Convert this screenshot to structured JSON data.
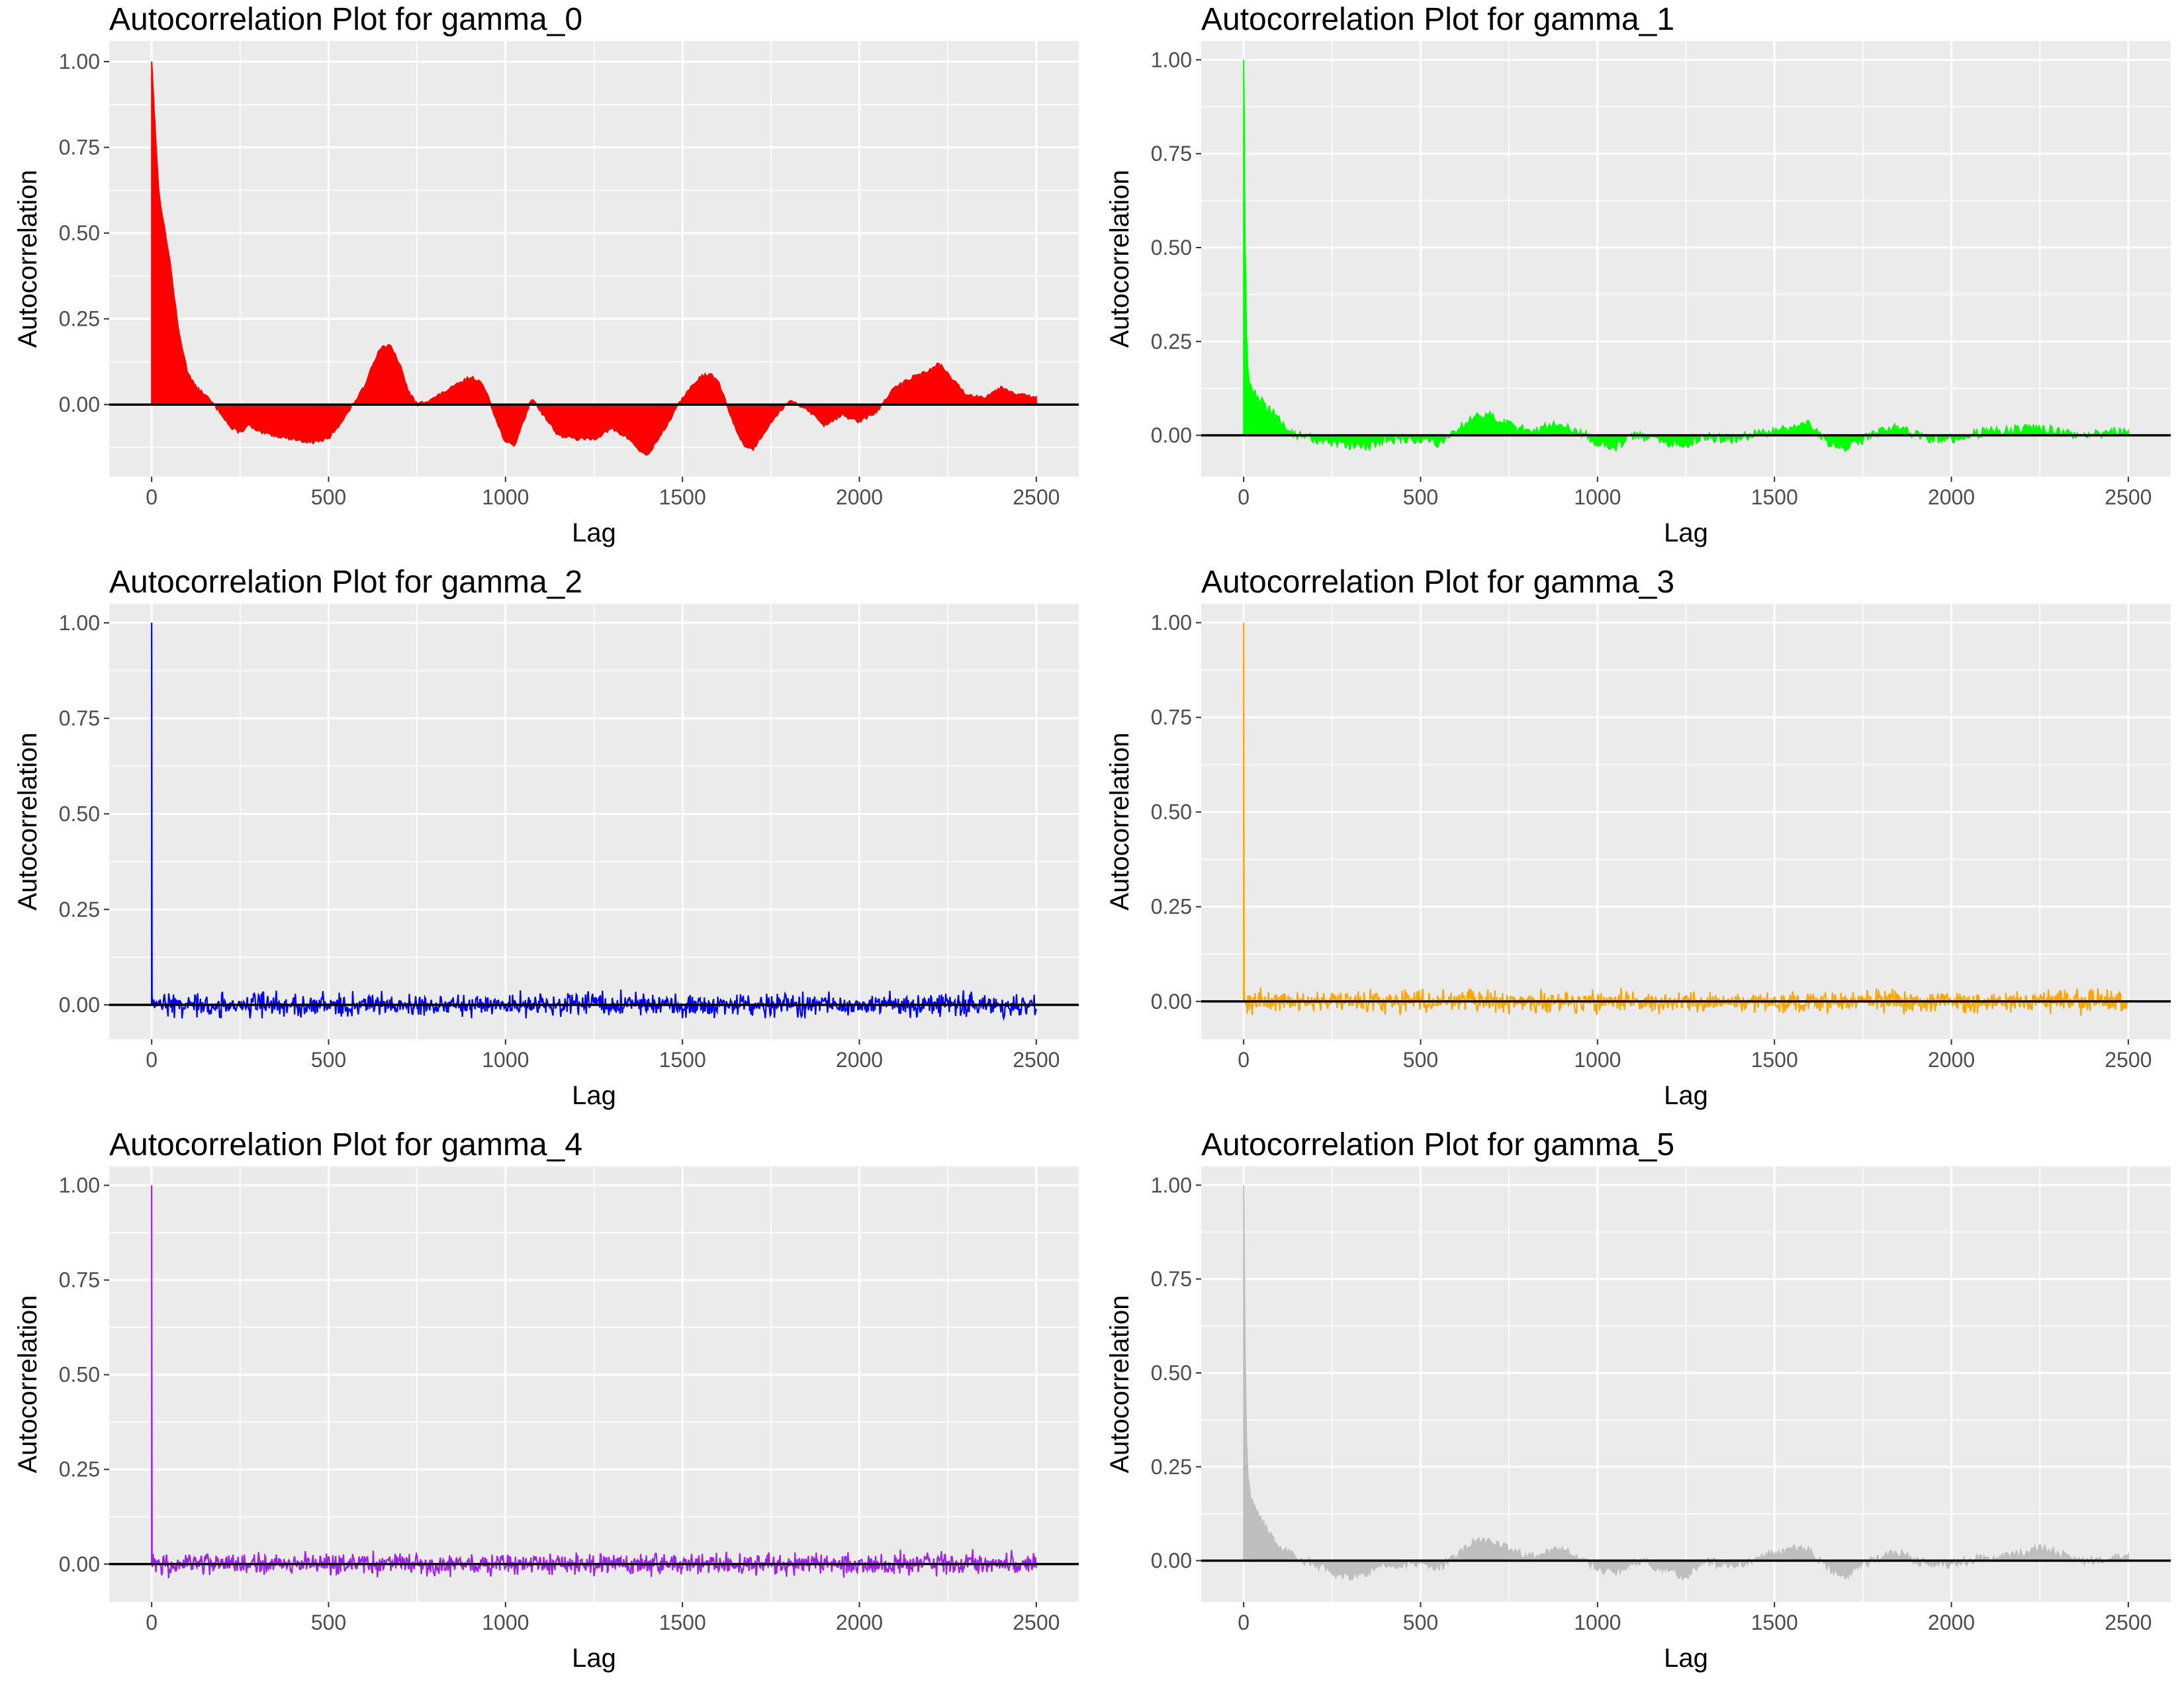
{
  "chart_data": [
    {
      "type": "area",
      "title": "Autocorrelation Plot for gamma_0",
      "xlabel": "Lag",
      "ylabel": "Autocorrelation",
      "color": "#ff0000",
      "style": "area",
      "xlim": [
        -120,
        2620
      ],
      "ylim": [
        -0.21,
        1.06
      ],
      "xticks": [
        0,
        500,
        1000,
        1500,
        2000,
        2500
      ],
      "yticks": [
        0.0,
        0.25,
        0.5,
        0.75,
        1.0
      ],
      "ytick_labels": [
        "0.00",
        "0.25",
        "0.50",
        "0.75",
        "1.00"
      ],
      "hline": 0,
      "series": [
        {
          "x": [
            0,
            10,
            20,
            35,
            50,
            75,
            100,
            125,
            150,
            175,
            200,
            225,
            250,
            275,
            300,
            350,
            400,
            450,
            500,
            550,
            575,
            600,
            625,
            650,
            675,
            700,
            725,
            750,
            800,
            850,
            900,
            925,
            950,
            975,
            1000,
            1025,
            1050,
            1075,
            1100,
            1150,
            1200,
            1250,
            1300,
            1350,
            1375,
            1400,
            1450,
            1500,
            1525,
            1550,
            1575,
            1600,
            1625,
            1650,
            1675,
            1700,
            1750,
            1800,
            1850,
            1900,
            1950,
            2000,
            2050,
            2100,
            2150,
            2200,
            2225,
            2250,
            2300,
            2350,
            2400,
            2450,
            2500
          ],
          "y": [
            1.0,
            0.8,
            0.62,
            0.52,
            0.43,
            0.22,
            0.1,
            0.05,
            0.03,
            0.0,
            -0.03,
            -0.07,
            -0.08,
            -0.06,
            -0.08,
            -0.09,
            -0.1,
            -0.11,
            -0.1,
            -0.03,
            0.01,
            0.05,
            0.12,
            0.17,
            0.17,
            0.12,
            0.04,
            0.0,
            0.02,
            0.05,
            0.08,
            0.07,
            0.03,
            -0.05,
            -0.11,
            -0.12,
            -0.05,
            0.02,
            -0.02,
            -0.09,
            -0.1,
            -0.1,
            -0.07,
            -0.1,
            -0.13,
            -0.15,
            -0.07,
            0.02,
            0.05,
            0.08,
            0.09,
            0.07,
            0.0,
            -0.07,
            -0.12,
            -0.13,
            -0.05,
            0.01,
            -0.01,
            -0.06,
            -0.03,
            -0.05,
            -0.02,
            0.05,
            0.08,
            0.1,
            0.12,
            0.09,
            0.03,
            0.02,
            0.05,
            0.03,
            0.02
          ]
        }
      ]
    },
    {
      "type": "area",
      "title": "Autocorrelation Plot for gamma_1",
      "xlabel": "Lag",
      "ylabel": "Autocorrelation",
      "color": "#00ff00",
      "style": "area",
      "xlim": [
        -120,
        2620
      ],
      "ylim": [
        -0.11,
        1.05
      ],
      "xticks": [
        0,
        500,
        1000,
        1500,
        2000,
        2500
      ],
      "yticks": [
        0.0,
        0.25,
        0.5,
        0.75,
        1.0
      ],
      "ytick_labels": [
        "0.00",
        "0.25",
        "0.50",
        "0.75",
        "1.00"
      ],
      "hline": 0,
      "series": [
        {
          "x": [
            0,
            5,
            10,
            20,
            40,
            60,
            80,
            100,
            150,
            200,
            250,
            300,
            350,
            400,
            450,
            500,
            550,
            600,
            650,
            700,
            750,
            800,
            850,
            900,
            950,
            1000,
            1050,
            1100,
            1150,
            1200,
            1250,
            1300,
            1350,
            1400,
            1450,
            1500,
            1550,
            1600,
            1650,
            1700,
            1750,
            1800,
            1850,
            1900,
            1950,
            2000,
            2050,
            2100,
            2150,
            2200,
            2250,
            2300,
            2350,
            2400,
            2450,
            2500
          ],
          "y": [
            1.0,
            0.38,
            0.18,
            0.13,
            0.1,
            0.08,
            0.06,
            0.04,
            0.0,
            -0.01,
            -0.02,
            -0.03,
            -0.03,
            -0.01,
            -0.01,
            -0.01,
            -0.02,
            0.01,
            0.05,
            0.05,
            0.03,
            0.01,
            0.02,
            0.03,
            0.01,
            -0.02,
            -0.03,
            0.0,
            -0.01,
            -0.02,
            -0.03,
            0.0,
            -0.01,
            -0.01,
            0.01,
            0.01,
            0.02,
            0.03,
            -0.02,
            -0.03,
            -0.01,
            0.01,
            0.02,
            0.0,
            -0.01,
            -0.01,
            0.0,
            0.01,
            0.01,
            0.02,
            0.02,
            0.01,
            0.0,
            0.0,
            0.01,
            0.01
          ]
        }
      ]
    },
    {
      "type": "line",
      "title": "Autocorrelation Plot for gamma_2",
      "xlabel": "Lag",
      "ylabel": "Autocorrelation",
      "color": "#0000ff",
      "style": "noise",
      "xlim": [
        -120,
        2620
      ],
      "ylim": [
        -0.09,
        1.05
      ],
      "xticks": [
        0,
        500,
        1000,
        1500,
        2000,
        2500
      ],
      "yticks": [
        0.0,
        0.25,
        0.5,
        0.75,
        1.0
      ],
      "ytick_labels": [
        "0.00",
        "0.25",
        "0.50",
        "0.75",
        "1.00"
      ],
      "hline": 0,
      "series": [
        {
          "x": [
            0,
            2500
          ],
          "lag0": 1.0,
          "noise_amplitude": 0.03,
          "y_range": [
            -0.035,
            0.045
          ]
        }
      ]
    },
    {
      "type": "line",
      "title": "Autocorrelation Plot for gamma_3",
      "xlabel": "Lag",
      "ylabel": "Autocorrelation",
      "color": "#ffa500",
      "style": "noise",
      "xlim": [
        -120,
        2620
      ],
      "ylim": [
        -0.1,
        1.05
      ],
      "xticks": [
        0,
        500,
        1000,
        1500,
        2000,
        2500
      ],
      "yticks": [
        0.0,
        0.25,
        0.5,
        0.75,
        1.0
      ],
      "ytick_labels": [
        "0.00",
        "0.25",
        "0.50",
        "0.75",
        "1.00"
      ],
      "hline": 0,
      "series": [
        {
          "x": [
            0,
            2500
          ],
          "lag0": 1.0,
          "noise_amplitude": 0.028,
          "y_range": [
            -0.04,
            0.04
          ]
        }
      ]
    },
    {
      "type": "line",
      "title": "Autocorrelation Plot for gamma_4",
      "xlabel": "Lag",
      "ylabel": "Autocorrelation",
      "color": "#a020f0",
      "style": "noise",
      "xlim": [
        -120,
        2620
      ],
      "ylim": [
        -0.1,
        1.05
      ],
      "xticks": [
        0,
        500,
        1000,
        1500,
        2000,
        2500
      ],
      "yticks": [
        0.0,
        0.25,
        0.5,
        0.75,
        1.0
      ],
      "ytick_labels": [
        "0.00",
        "0.25",
        "0.50",
        "0.75",
        "1.00"
      ],
      "hline": 0,
      "series": [
        {
          "x": [
            0,
            2500
          ],
          "lag0": 1.0,
          "noise_amplitude": 0.028,
          "y_range": [
            -0.045,
            0.04
          ]
        }
      ]
    },
    {
      "type": "area",
      "title": "Autocorrelation Plot for gamma_5",
      "xlabel": "Lag",
      "ylabel": "Autocorrelation",
      "color": "#bebebe",
      "style": "area",
      "xlim": [
        -120,
        2620
      ],
      "ylim": [
        -0.11,
        1.05
      ],
      "xticks": [
        0,
        500,
        1000,
        1500,
        2000,
        2500
      ],
      "yticks": [
        0.0,
        0.25,
        0.5,
        0.75,
        1.0
      ],
      "ytick_labels": [
        "0.00",
        "0.25",
        "0.50",
        "0.75",
        "1.00"
      ],
      "hline": 0,
      "series": [
        {
          "x": [
            0,
            5,
            10,
            20,
            40,
            60,
            80,
            100,
            150,
            200,
            250,
            300,
            350,
            400,
            450,
            500,
            550,
            600,
            650,
            700,
            750,
            800,
            850,
            900,
            950,
            1000,
            1050,
            1100,
            1150,
            1200,
            1250,
            1300,
            1350,
            1400,
            1450,
            1500,
            1550,
            1600,
            1650,
            1700,
            1750,
            1800,
            1850,
            1900,
            1950,
            2000,
            2050,
            2100,
            2150,
            2200,
            2250,
            2300,
            2350,
            2400,
            2450,
            2500
          ],
          "y": [
            1.0,
            0.44,
            0.25,
            0.16,
            0.12,
            0.09,
            0.06,
            0.04,
            0.01,
            -0.01,
            -0.03,
            -0.04,
            -0.03,
            -0.01,
            -0.01,
            -0.01,
            -0.02,
            0.01,
            0.05,
            0.05,
            0.03,
            0.01,
            0.02,
            0.03,
            0.01,
            -0.02,
            -0.03,
            0.0,
            -0.01,
            -0.03,
            -0.04,
            0.0,
            -0.01,
            -0.01,
            0.01,
            0.02,
            0.03,
            0.03,
            -0.02,
            -0.04,
            -0.01,
            0.01,
            0.02,
            0.0,
            -0.01,
            -0.01,
            0.0,
            0.01,
            0.01,
            0.02,
            0.03,
            0.02,
            0.0,
            0.0,
            0.01,
            0.01
          ]
        }
      ]
    }
  ]
}
